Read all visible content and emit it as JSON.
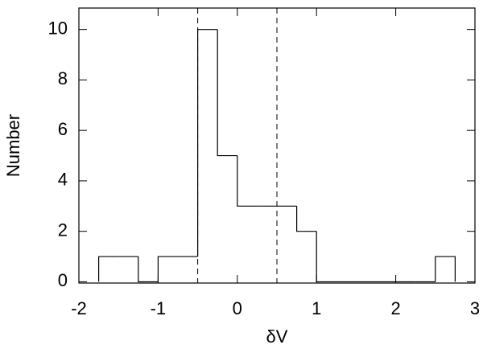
{
  "chart_data": {
    "type": "histogram",
    "x_label": "δV",
    "y_label": "Number",
    "bins": [
      -1.75,
      -1.5,
      -1.25,
      -1.0,
      -0.75,
      -0.5,
      -0.25,
      0.0,
      0.25,
      0.5,
      0.75,
      1.0,
      1.25,
      1.5,
      1.75,
      2.0,
      2.25,
      2.5,
      2.75
    ],
    "values": [
      1,
      1,
      0,
      1,
      1,
      10,
      5,
      3,
      3,
      3,
      2,
      0,
      0,
      0,
      0,
      0,
      0,
      1
    ],
    "color": "#000000",
    "vlines": [
      -0.5,
      0.5
    ],
    "xlim": [
      -2,
      3
    ],
    "xticks": [
      -2,
      -1,
      0,
      1,
      2,
      3
    ],
    "ylim": [
      -0.05,
      10.85
    ],
    "yticks": [
      0,
      2,
      4,
      6,
      8,
      10
    ]
  }
}
